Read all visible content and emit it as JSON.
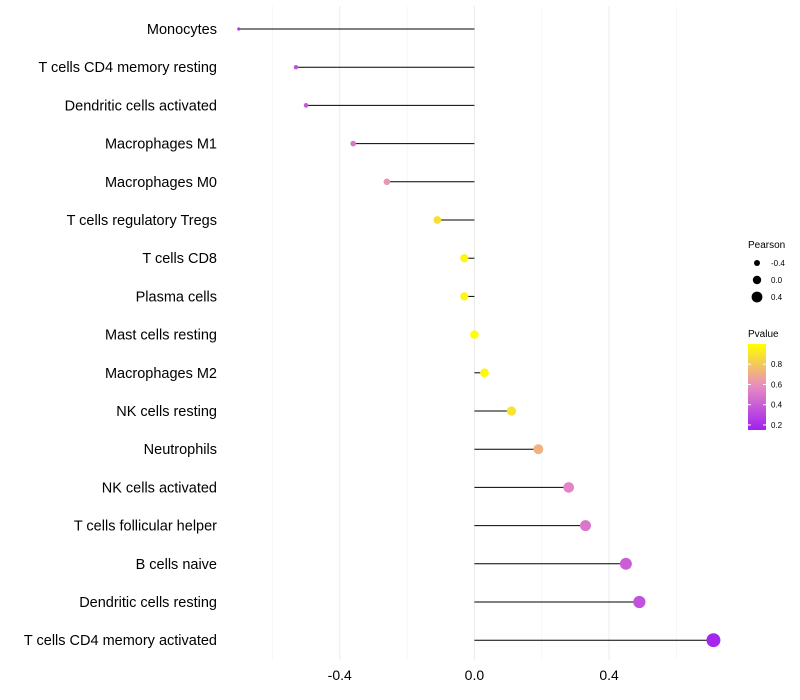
{
  "chart_data": {
    "type": "lollipop",
    "title": "",
    "xlabel": "",
    "ylabel": "",
    "xlim": [
      -0.72,
      0.78
    ],
    "x_ticks": [
      {
        "value": -0.4,
        "label": "-0.4"
      },
      {
        "value": 0.0,
        "label": "0.0"
      },
      {
        "value": 0.4,
        "label": "0.4"
      }
    ],
    "categories": [
      "Monocytes",
      "T cells CD4 memory resting",
      "Dendritic cells activated",
      "Macrophages M1",
      "Macrophages M0",
      "T cells regulatory  Tregs",
      "T cells CD8",
      "Plasma cells",
      "Mast cells resting",
      "Macrophages M2",
      "NK cells resting",
      "Neutrophils",
      "NK cells activated",
      "T cells follicular helper",
      "B cells naive",
      "Dendritic cells resting",
      "T cells CD4 memory activated"
    ],
    "series": [
      {
        "name": "Pearson",
        "values": [
          -0.7,
          -0.53,
          -0.5,
          -0.36,
          -0.26,
          -0.11,
          -0.03,
          -0.03,
          0.0,
          0.03,
          0.11,
          0.19,
          0.28,
          0.33,
          0.45,
          0.49,
          0.71
        ]
      },
      {
        "name": "Pvalue",
        "values": [
          0.25,
          0.35,
          0.38,
          0.5,
          0.62,
          0.88,
          0.97,
          0.97,
          1.0,
          0.97,
          0.9,
          0.72,
          0.55,
          0.5,
          0.4,
          0.35,
          0.18
        ]
      }
    ],
    "legend": {
      "position": "right",
      "size_title": "Pearson",
      "size_entries": [
        {
          "value": -0.4,
          "label": "-0.4"
        },
        {
          "value": 0.0,
          "label": "0.0"
        },
        {
          "value": 0.4,
          "label": "0.4"
        }
      ],
      "color_title": "Pvalue",
      "color_ticks": [
        {
          "value": 0.8,
          "label": "0.8"
        },
        {
          "value": 0.6,
          "label": "0.6"
        },
        {
          "value": 0.4,
          "label": "0.4"
        },
        {
          "value": 0.2,
          "label": "0.2"
        }
      ],
      "color_range": [
        0.15,
        1.0
      ],
      "color_low": "#a020f0",
      "color_mid": "#e78ac3",
      "color_high": "#ffff00"
    },
    "grid": true
  }
}
